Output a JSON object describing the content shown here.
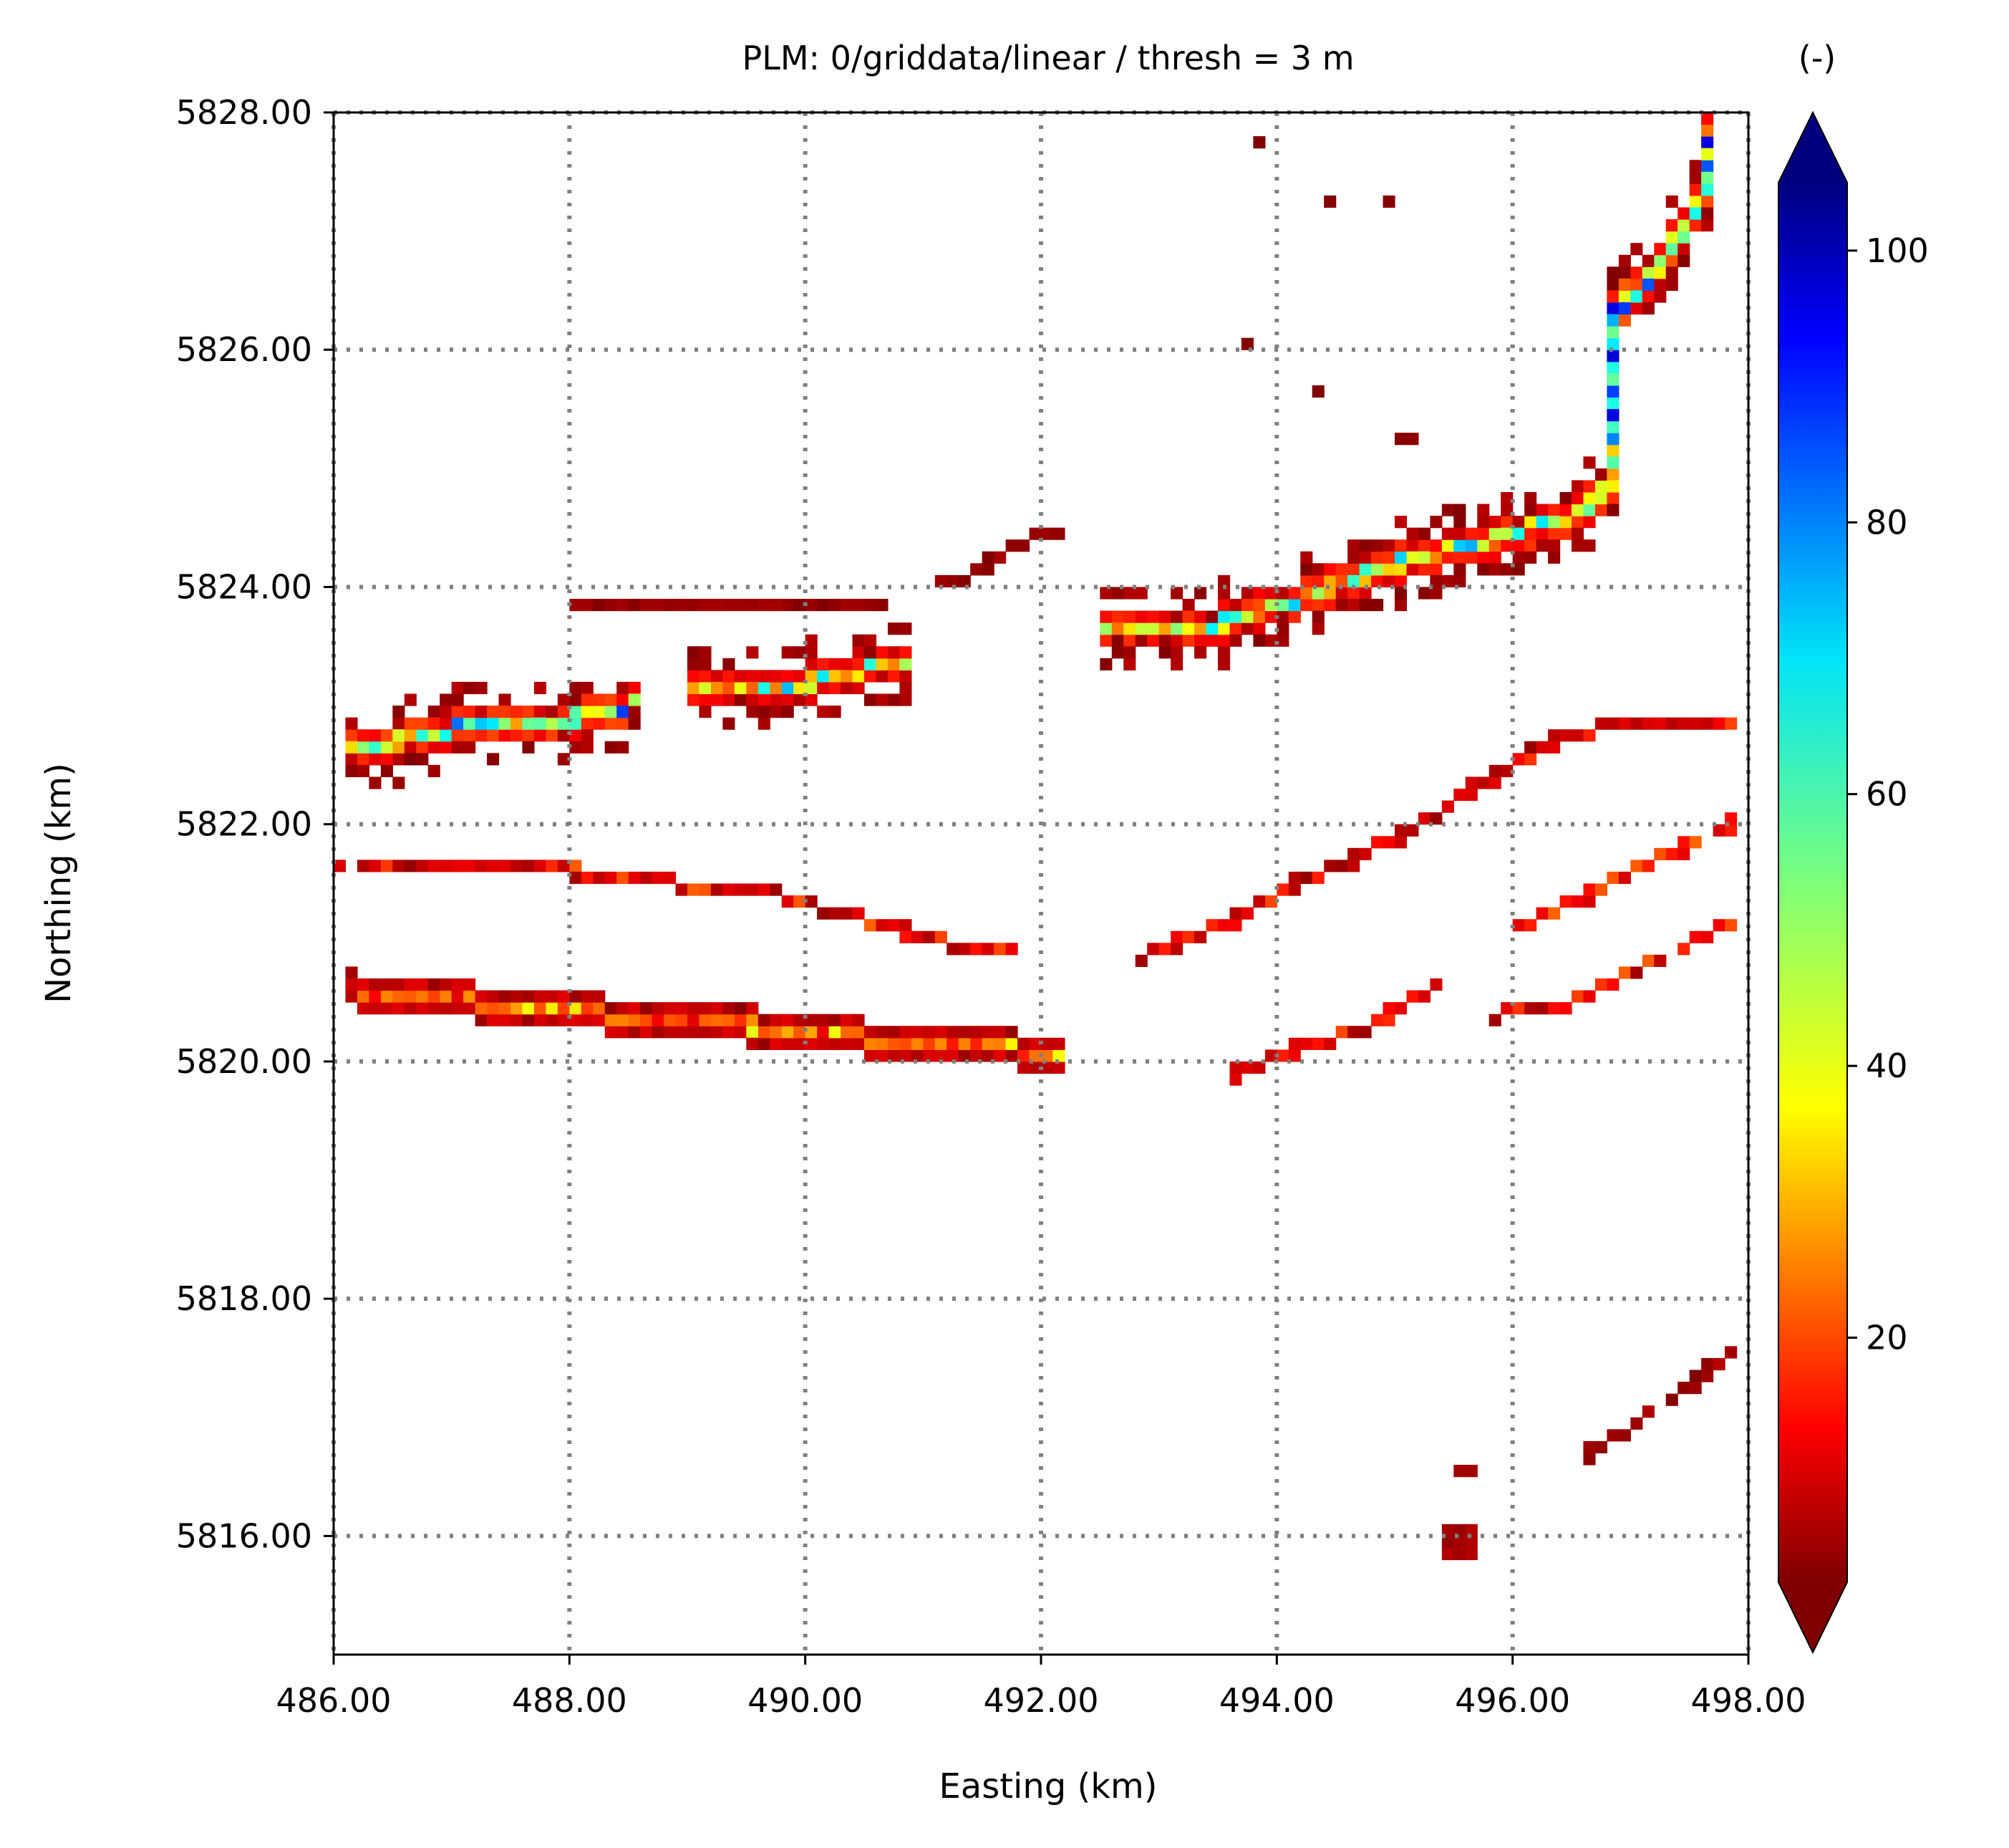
{
  "chart_data": {
    "type": "heatmap",
    "title": "PLM: 0/griddata/linear / thresh = 3 m",
    "xlabel": "Easting (km)",
    "ylabel": "Northing (km)",
    "xlim": [
      486.0,
      498.0
    ],
    "ylim": [
      5815.0,
      5828.0
    ],
    "xticks": [
      486,
      488,
      490,
      492,
      494,
      496,
      498
    ],
    "xtick_labels": [
      "486.00",
      "488.00",
      "490.00",
      "492.00",
      "494.00",
      "496.00",
      "498.00"
    ],
    "yticks": [
      5816,
      5818,
      5820,
      5822,
      5824,
      5826,
      5828
    ],
    "ytick_labels": [
      "5816.00",
      "5818.00",
      "5820.00",
      "5822.00",
      "5824.00",
      "5826.00",
      "5828.00"
    ],
    "grid": true,
    "grid_style": "dotted",
    "colormap": "jet_r",
    "colorbar": {
      "label": "(-)",
      "range": [
        2,
        105
      ],
      "ticks": [
        20,
        40,
        60,
        80,
        100
      ],
      "tick_labels": [
        "20",
        "40",
        "60",
        "80",
        "100"
      ],
      "extend": "both"
    },
    "cell_size_km": [
      0.1,
      0.1
    ],
    "features": [
      {
        "type": "path",
        "points": [
          [
            486.1,
            5822.6
          ],
          [
            487.0,
            5822.8
          ],
          [
            488.0,
            5822.9
          ],
          [
            488.5,
            5823.0
          ]
        ],
        "width": 3,
        "core": 45,
        "peak": 90
      },
      {
        "type": "path",
        "points": [
          [
            489.0,
            5823.1
          ],
          [
            490.0,
            5823.2
          ],
          [
            490.9,
            5823.4
          ]
        ],
        "width": 3,
        "core": 35,
        "peak": 80
      },
      {
        "type": "path",
        "points": [
          [
            492.5,
            5823.6
          ],
          [
            493.5,
            5823.7
          ],
          [
            494.2,
            5823.9
          ],
          [
            495.0,
            5824.2
          ],
          [
            495.8,
            5824.4
          ],
          [
            496.5,
            5824.6
          ],
          [
            496.9,
            5824.9
          ]
        ],
        "width": 3,
        "core": 40,
        "peak": 75
      },
      {
        "type": "path",
        "points": [
          [
            496.9,
            5824.9
          ],
          [
            496.9,
            5825.4
          ],
          [
            496.8,
            5825.9
          ],
          [
            496.9,
            5826.3
          ],
          [
            497.3,
            5826.8
          ],
          [
            497.6,
            5827.3
          ],
          [
            497.7,
            5827.8
          ]
        ],
        "width": 3,
        "core": 50,
        "peak": 100
      },
      {
        "type": "path",
        "points": [
          [
            486.0,
            5821.7
          ],
          [
            487.0,
            5821.6
          ],
          [
            488.0,
            5821.6
          ],
          [
            488.9,
            5821.5
          ],
          [
            489.8,
            5821.4
          ],
          [
            490.5,
            5821.2
          ],
          [
            491.2,
            5821.0
          ],
          [
            491.8,
            5820.9
          ]
        ],
        "width": 1,
        "core": 10,
        "peak": 25
      },
      {
        "type": "path",
        "points": [
          [
            486.2,
            5820.6
          ],
          [
            487.2,
            5820.5
          ],
          [
            488.3,
            5820.4
          ],
          [
            489.5,
            5820.3
          ],
          [
            490.5,
            5820.2
          ],
          [
            491.5,
            5820.15
          ],
          [
            492.1,
            5820.05
          ]
        ],
        "width": 2,
        "core": 22,
        "peak": 45
      },
      {
        "type": "path",
        "points": [
          [
            492.9,
            5820.9
          ],
          [
            493.6,
            5821.2
          ],
          [
            494.2,
            5821.5
          ],
          [
            495.0,
            5821.9
          ],
          [
            495.7,
            5822.3
          ],
          [
            496.3,
            5822.7
          ],
          [
            497.0,
            5822.85
          ],
          [
            497.9,
            5822.9
          ]
        ],
        "width": 1,
        "core": 10,
        "peak": 22
      },
      {
        "type": "path",
        "points": [
          [
            496.0,
            5821.1
          ],
          [
            496.6,
            5821.4
          ],
          [
            497.2,
            5821.7
          ],
          [
            497.9,
            5822.0
          ]
        ],
        "width": 1,
        "core": 14,
        "peak": 28
      },
      {
        "type": "path",
        "points": [
          [
            493.6,
            5819.9
          ],
          [
            494.2,
            5820.1
          ],
          [
            494.8,
            5820.3
          ],
          [
            495.3,
            5820.6
          ]
        ],
        "width": 1,
        "core": 10,
        "peak": 22
      },
      {
        "type": "path",
        "points": [
          [
            495.9,
            5820.4
          ],
          [
            496.5,
            5820.5
          ],
          [
            497.1,
            5820.8
          ],
          [
            497.9,
            5821.2
          ]
        ],
        "width": 1,
        "core": 12,
        "peak": 25
      },
      {
        "type": "path",
        "points": [
          [
            496.6,
            5816.7
          ],
          [
            497.2,
            5817.0
          ],
          [
            497.8,
            5817.5
          ]
        ],
        "width": 1,
        "core": 4,
        "peak": 8
      },
      {
        "type": "path",
        "points": [
          [
            491.2,
            5824.0
          ],
          [
            491.9,
            5824.4
          ],
          [
            492.2,
            5824.5
          ]
        ],
        "width": 1,
        "core": 4,
        "peak": 6
      },
      {
        "type": "path",
        "points": [
          [
            488.0,
            5823.9
          ],
          [
            488.7,
            5823.8
          ],
          [
            489.7,
            5823.9
          ],
          [
            490.6,
            5823.9
          ]
        ],
        "width": 1,
        "core": 4,
        "peak": 6
      },
      {
        "type": "blob",
        "x": 495.6,
        "y": 5816.0,
        "w": 0.3,
        "h": 0.4,
        "value": 6
      },
      {
        "type": "blob",
        "x": 495.65,
        "y": 5816.6,
        "w": 0.3,
        "h": 0.1,
        "value": 5
      },
      {
        "type": "blob",
        "x": 493.9,
        "y": 5827.8,
        "w": 0.1,
        "h": 0.1,
        "value": 3
      },
      {
        "type": "blob",
        "x": 494.5,
        "y": 5827.3,
        "w": 0.1,
        "h": 0.1,
        "value": 3
      },
      {
        "type": "blob",
        "x": 495.0,
        "y": 5827.3,
        "w": 0.1,
        "h": 0.1,
        "value": 3
      },
      {
        "type": "blob",
        "x": 493.8,
        "y": 5826.1,
        "w": 0.1,
        "h": 0.1,
        "value": 3
      },
      {
        "type": "blob",
        "x": 494.4,
        "y": 5825.7,
        "w": 0.1,
        "h": 0.1,
        "value": 3
      },
      {
        "type": "blob",
        "x": 495.1,
        "y": 5825.3,
        "w": 0.2,
        "h": 0.1,
        "value": 3
      }
    ]
  }
}
